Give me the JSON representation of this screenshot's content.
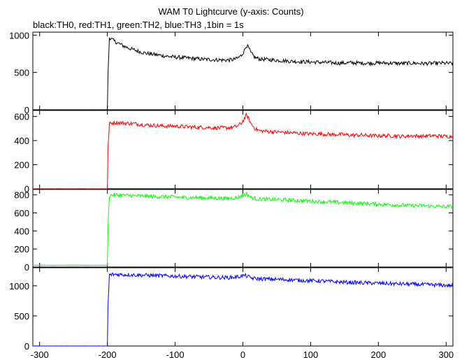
{
  "chart_data": {
    "type": "line",
    "title": "WAM T0 Lightcurve (y-axis: Counts)",
    "subtitle": "black:TH0, red:TH1, green:TH2, blue:TH3 ,1bin = 1s",
    "xlim": [
      -310,
      310
    ],
    "x_ticks": [
      -300,
      -200,
      -100,
      0,
      100,
      200,
      300
    ],
    "x_tick_labels": [
      "-300",
      "-200",
      "-100",
      "0",
      "100",
      "200",
      "300"
    ],
    "grid": false,
    "panels": [
      {
        "series_color": "#000000",
        "ylim": [
          0,
          1040
        ],
        "y_ticks": [
          0,
          500,
          1000
        ],
        "y_tick_labels": [
          "0",
          "500",
          "1000"
        ],
        "x": [
          -310,
          -200,
          -199,
          -197,
          -190,
          -175,
          -160,
          -145,
          -130,
          -115,
          -100,
          -85,
          -70,
          -55,
          -40,
          -25,
          -15,
          -8,
          -2,
          2,
          5,
          8,
          12,
          18,
          25,
          40,
          55,
          70,
          85,
          100,
          115,
          130,
          145,
          160,
          175,
          190,
          205,
          220,
          235,
          250,
          265,
          280,
          295,
          308
        ],
        "y": [
          0,
          0,
          500,
          970,
          920,
          850,
          800,
          760,
          740,
          720,
          705,
          695,
          685,
          675,
          670,
          665,
          670,
          690,
          730,
          790,
          860,
          840,
          760,
          700,
          680,
          670,
          660,
          650,
          645,
          640,
          635,
          630,
          625,
          630,
          625,
          625,
          628,
          625,
          620,
          625,
          620,
          622,
          625,
          620
        ]
      },
      {
        "series_color": "#ff0000",
        "ylim": [
          0,
          650
        ],
        "y_ticks": [
          0,
          200,
          400,
          600
        ],
        "y_tick_labels": [
          "0",
          "200",
          "400",
          "600"
        ],
        "x": [
          -310,
          -200,
          -199,
          -197,
          -190,
          -175,
          -160,
          -145,
          -130,
          -115,
          -100,
          -85,
          -70,
          -55,
          -40,
          -25,
          -15,
          -8,
          -2,
          2,
          5,
          8,
          12,
          18,
          25,
          40,
          55,
          70,
          85,
          100,
          115,
          130,
          145,
          160,
          175,
          190,
          205,
          220,
          235,
          250,
          265,
          280,
          295,
          308
        ],
        "y": [
          0,
          0,
          350,
          540,
          550,
          545,
          540,
          530,
          525,
          520,
          520,
          515,
          510,
          510,
          505,
          505,
          510,
          520,
          545,
          580,
          610,
          590,
          540,
          500,
          480,
          475,
          470,
          465,
          460,
          455,
          455,
          450,
          450,
          445,
          445,
          440,
          440,
          440,
          435,
          440,
          435,
          440,
          435,
          435
        ]
      },
      {
        "series_color": "#00ff00",
        "ylim": [
          0,
          860
        ],
        "y_ticks": [
          0,
          200,
          400,
          600,
          800
        ],
        "y_tick_labels": [
          "0",
          "200",
          "400",
          "600",
          "800"
        ],
        "x": [
          -310,
          -200,
          -199,
          -197,
          -190,
          -175,
          -160,
          -145,
          -130,
          -115,
          -100,
          -85,
          -70,
          -55,
          -40,
          -25,
          -15,
          -8,
          -2,
          2,
          5,
          8,
          12,
          18,
          25,
          40,
          55,
          70,
          85,
          100,
          115,
          130,
          145,
          160,
          175,
          190,
          205,
          220,
          235,
          250,
          265,
          280,
          295,
          308
        ],
        "y": [
          20,
          20,
          450,
          790,
          800,
          795,
          790,
          785,
          780,
          780,
          775,
          770,
          770,
          765,
          765,
          760,
          765,
          770,
          785,
          800,
          810,
          795,
          770,
          760,
          755,
          750,
          745,
          740,
          735,
          730,
          725,
          720,
          715,
          710,
          705,
          700,
          695,
          690,
          685,
          680,
          680,
          675,
          670,
          670
        ]
      },
      {
        "series_color": "#0000ff",
        "ylim": [
          0,
          1300
        ],
        "y_ticks": [
          0,
          500,
          1000
        ],
        "y_tick_labels": [
          "0",
          "500",
          "1000"
        ],
        "x": [
          -310,
          -200,
          -199,
          -197,
          -190,
          -175,
          -160,
          -145,
          -130,
          -115,
          -100,
          -85,
          -70,
          -55,
          -40,
          -25,
          -15,
          -8,
          -2,
          2,
          5,
          8,
          12,
          18,
          25,
          40,
          55,
          70,
          85,
          100,
          115,
          130,
          145,
          160,
          175,
          190,
          205,
          220,
          235,
          250,
          265,
          280,
          295,
          308
        ],
        "y": [
          0,
          0,
          700,
          1180,
          1190,
          1185,
          1180,
          1175,
          1170,
          1165,
          1160,
          1155,
          1150,
          1145,
          1140,
          1135,
          1140,
          1150,
          1160,
          1170,
          1165,
          1150,
          1130,
          1120,
          1115,
          1110,
          1105,
          1100,
          1090,
          1085,
          1080,
          1070,
          1060,
          1055,
          1050,
          1045,
          1040,
          1035,
          1030,
          1025,
          1020,
          1015,
          1010,
          1005
        ]
      }
    ]
  }
}
